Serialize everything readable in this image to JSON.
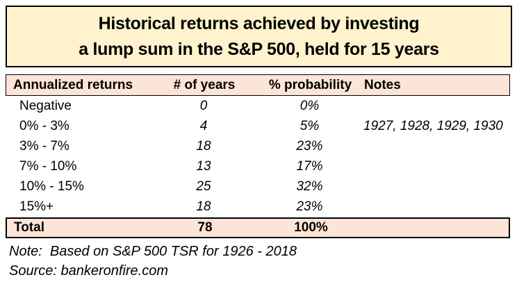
{
  "title": {
    "line1": "Historical returns achieved by investing",
    "line2": "a lump sum in the S&P 500, held for 15 years"
  },
  "chart_data": {
    "type": "table",
    "title": "Historical returns achieved by investing a lump sum in the S&P 500, held for 15 years",
    "columns": [
      "Annualized returns",
      "# of years",
      "% probability",
      "Notes"
    ],
    "rows": [
      [
        "Negative",
        "0",
        "0%",
        ""
      ],
      [
        "0% - 3%",
        "4",
        "5%",
        "1927, 1928, 1929, 1930"
      ],
      [
        "3% - 7%",
        "18",
        "23%",
        ""
      ],
      [
        "7% - 10%",
        "13",
        "17%",
        ""
      ],
      [
        "10% - 15%",
        "25",
        "32%",
        ""
      ],
      [
        "15%+",
        "18",
        "23%",
        ""
      ]
    ],
    "total_row": [
      "Total",
      "78",
      "100%",
      ""
    ],
    "footnote": "Note:  Based on S&P 500 TSR for 1926 - 2018",
    "source": "Source: bankeronfire.com"
  },
  "colors": {
    "title_bg": "#fff2cc",
    "header_bg": "#fce4d6",
    "total_bg": "#fce4d6",
    "border": "#000000",
    "text": "#000000",
    "page_bg": "#ffffff"
  }
}
